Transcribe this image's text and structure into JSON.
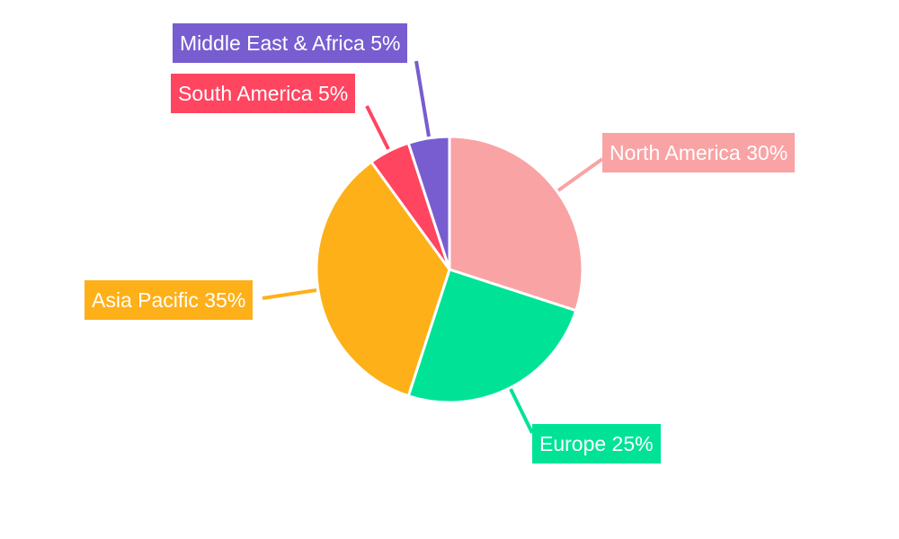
{
  "chart_data": {
    "type": "pie",
    "categories": [
      "North America",
      "Europe",
      "Asia Pacific",
      "South America",
      "Middle East & Africa"
    ],
    "values": [
      30,
      25,
      35,
      5,
      5
    ],
    "labels": [
      "North America 30%",
      "Europe 25%",
      "Asia Pacific 35%",
      "South America 5%",
      "Middle East & Africa 5%"
    ],
    "colors": [
      "#F9A3A4",
      "#00E396",
      "#FEB019",
      "#FF4560",
      "#775DD0"
    ],
    "start_angle": "top, clockwise",
    "legend": "none"
  }
}
